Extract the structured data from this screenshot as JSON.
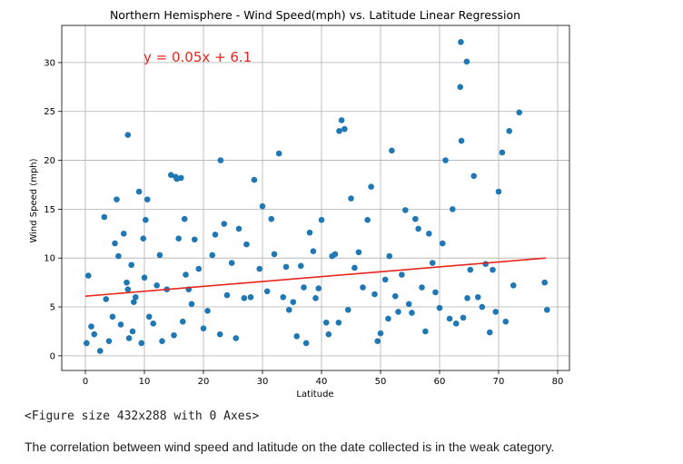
{
  "chart_data": {
    "type": "scatter",
    "title": "Northern Hemisphere - Wind Speed(mph) vs. Latitude Linear Regression",
    "xlabel": "Latitude",
    "ylabel": "Wind Speed (mph)",
    "xlim": [
      -4,
      82
    ],
    "ylim": [
      -1.5,
      33.8
    ],
    "xticks": [
      0,
      10,
      20,
      30,
      40,
      50,
      60,
      70,
      80
    ],
    "yticks": [
      0,
      5,
      10,
      15,
      20,
      25,
      30
    ],
    "grid": true,
    "annotation": "y = 0.05x + 6.1",
    "regression": {
      "slope": 0.05,
      "intercept": 6.1,
      "x_range": [
        0,
        78
      ],
      "color": "#e8261f"
    },
    "point_color": "#1f77b4",
    "x": [
      0.2,
      0.5,
      1.0,
      1.5,
      2.5,
      3.2,
      3.5,
      4.0,
      4.6,
      5.0,
      5.3,
      5.6,
      6.0,
      6.5,
      7.0,
      7.2,
      7.4,
      7.8,
      8.0,
      8.2,
      8.5,
      9.1,
      9.5,
      9.8,
      10.0,
      10.2,
      10.8,
      11.5,
      12.1,
      12.6,
      13.0,
      13.8,
      14.5,
      15.0,
      15.3,
      15.8,
      16.2,
      16.5,
      17.0,
      17.5,
      18.0,
      18.5,
      19.2,
      20.0,
      20.7,
      21.5,
      22.0,
      22.8,
      23.5,
      24.0,
      24.8,
      25.5,
      26.0,
      26.9,
      27.3,
      28.0,
      28.6,
      29.5,
      30.0,
      30.8,
      31.5,
      32.0,
      32.8,
      33.5,
      34.0,
      34.5,
      35.2,
      35.8,
      36.5,
      37.0,
      37.4,
      38.0,
      38.6,
      39.0,
      39.5,
      40.0,
      40.8,
      41.2,
      41.8,
      42.3,
      42.9,
      43.4,
      43.9,
      44.5,
      45.0,
      45.6,
      46.3,
      47.0,
      47.8,
      48.4,
      49.0,
      49.5,
      50.0,
      50.8,
      51.3,
      51.9,
      52.5,
      53.0,
      53.6,
      54.2,
      54.8,
      55.3,
      55.9,
      56.4,
      57.0,
      57.6,
      58.2,
      58.8,
      59.3,
      60.0,
      60.5,
      61.0,
      61.7,
      62.2,
      62.8,
      63.5,
      64.0,
      64.6,
      65.2,
      65.8,
      66.5,
      67.2,
      67.8,
      68.5,
      69.0,
      69.5,
      70.0,
      70.6,
      71.2,
      71.8,
      72.5,
      73.5,
      77.8,
      78.2,
      63.6,
      63.7,
      64.7,
      43.0,
      51.5,
      7.2,
      22.9,
      10.5,
      15.5,
      16.8
    ],
    "y": [
      1.3,
      8.2,
      3.0,
      2.2,
      0.5,
      14.2,
      5.8,
      1.5,
      4.0,
      11.5,
      16.0,
      10.2,
      3.2,
      12.5,
      7.5,
      6.8,
      1.8,
      9.3,
      2.5,
      5.5,
      6.0,
      16.8,
      1.3,
      12.0,
      8.0,
      13.9,
      4.0,
      3.3,
      7.2,
      10.3,
      1.5,
      6.8,
      18.5,
      2.1,
      18.3,
      12.0,
      18.2,
      3.5,
      8.3,
      6.8,
      5.3,
      11.9,
      8.9,
      2.8,
      4.6,
      10.3,
      12.4,
      2.2,
      13.5,
      6.2,
      9.5,
      1.8,
      13.0,
      5.9,
      11.4,
      6.0,
      18.0,
      8.9,
      15.3,
      6.6,
      14.0,
      10.4,
      20.7,
      6.0,
      9.1,
      4.7,
      5.5,
      2.0,
      9.2,
      7.0,
      1.3,
      12.6,
      10.7,
      5.9,
      6.9,
      13.9,
      3.4,
      2.2,
      10.2,
      10.4,
      3.4,
      24.1,
      23.2,
      4.7,
      16.1,
      9.0,
      10.6,
      7.0,
      13.9,
      17.3,
      6.3,
      1.5,
      2.3,
      7.8,
      3.8,
      21.0,
      6.1,
      4.5,
      8.3,
      14.9,
      5.3,
      4.4,
      14.0,
      13.0,
      7.0,
      2.5,
      12.5,
      9.5,
      6.5,
      4.9,
      11.5,
      20.0,
      3.8,
      15.0,
      3.3,
      27.5,
      3.9,
      30.1,
      8.8,
      18.4,
      6.0,
      5.0,
      9.4,
      2.4,
      8.8,
      4.5,
      16.8,
      20.8,
      3.5,
      23.0,
      7.2,
      24.9,
      7.5,
      4.7,
      32.1,
      22.0,
      5.9,
      23.0,
      10.2,
      22.6,
      20.0,
      16.0,
      18.1,
      14.0
    ]
  },
  "figure_repr": "<Figure size 432x288 with 0 Axes>",
  "caption": "The correlation between wind speed and latitude on the date collected is in the weak category."
}
